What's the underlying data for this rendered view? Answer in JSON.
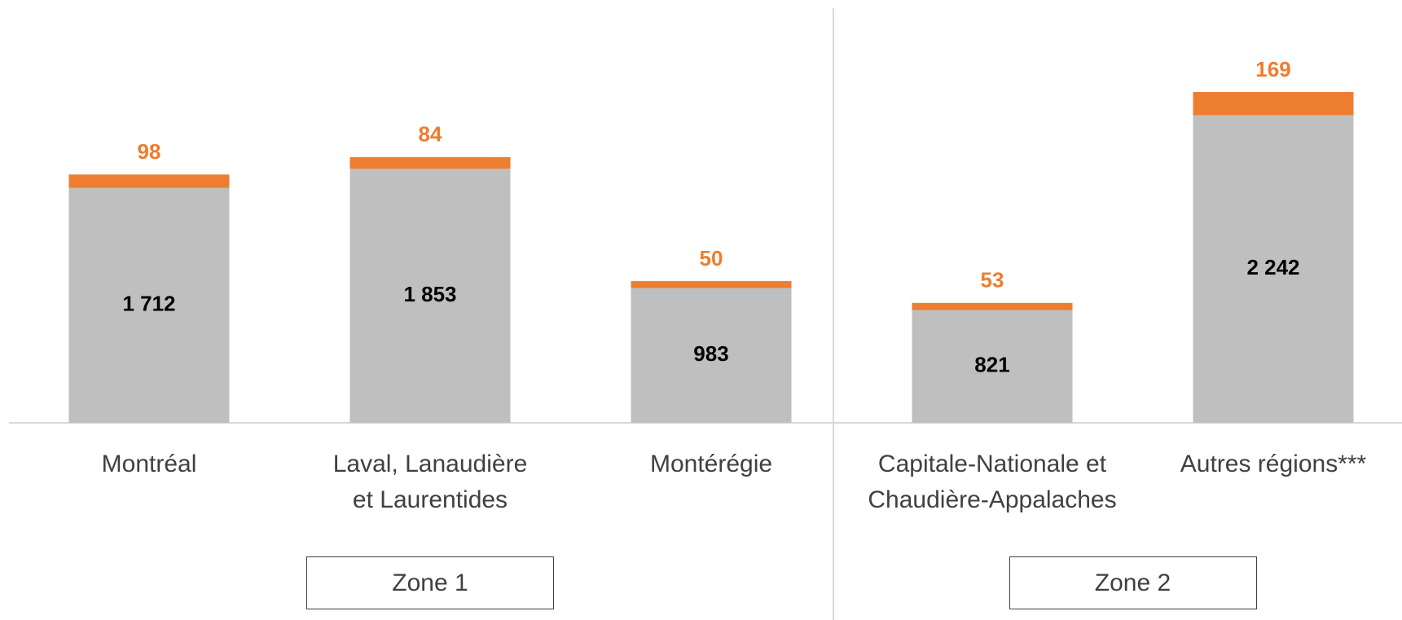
{
  "chart_data": {
    "type": "stacked_bar",
    "categories": [
      "Montréal",
      "Laval, Lanaudière\net Laurentides",
      "Montérégie",
      "Capitale-Nationale et\nChaudière-Appalaches",
      "Autres régions***"
    ],
    "zones": [
      "Zone 1",
      "Zone 1",
      "Zone 1",
      "Zone 2",
      "Zone 2"
    ],
    "series": [
      {
        "color": "#bfbfbf",
        "label_color": "#000000",
        "values": [
          1712,
          1853,
          983,
          821,
          2242
        ],
        "value_labels": [
          "1 712",
          "1 853",
          "983",
          "821",
          "2 242"
        ]
      },
      {
        "color": "#ed7d31",
        "label_color": "#ed7d31",
        "values": [
          98,
          84,
          50,
          53,
          169
        ]
      }
    ]
  }
}
